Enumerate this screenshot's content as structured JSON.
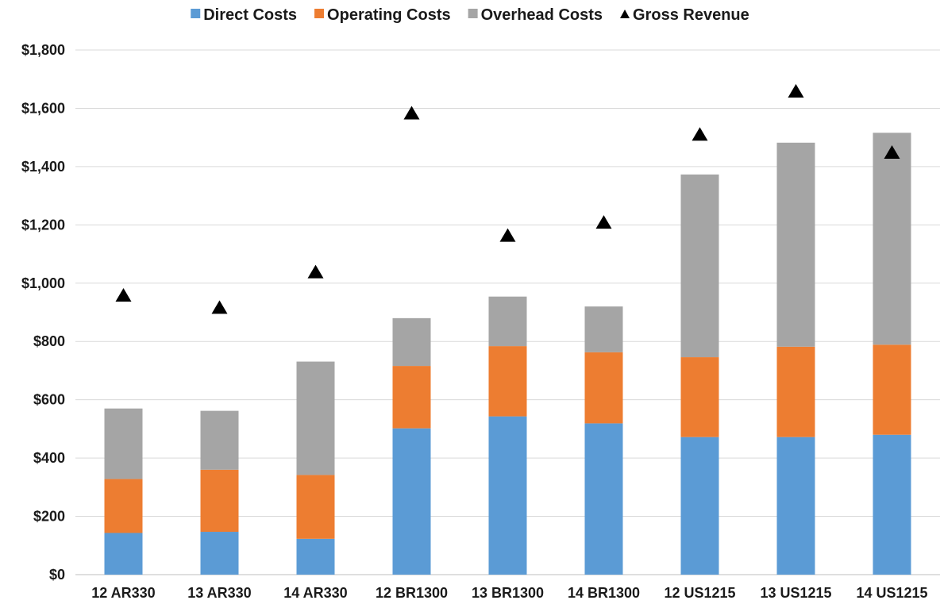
{
  "chart_data": {
    "type": "bar",
    "stacked": true,
    "title": "",
    "xlabel": "",
    "ylabel": "",
    "categories": [
      "12 AR330",
      "13 AR330",
      "14 AR330",
      "12 BR1300",
      "13 BR1300",
      "14 BR1300",
      "12 US1215",
      "13 US1215",
      "14 US1215"
    ],
    "series": [
      {
        "name": "Direct Costs",
        "kind": "bar",
        "color": "#5b9bd5",
        "values": [
          143,
          147,
          123,
          502,
          543,
          519,
          472,
          472,
          480
        ]
      },
      {
        "name": "Operating Costs",
        "kind": "bar",
        "color": "#ed7d31",
        "values": [
          185,
          213,
          219,
          214,
          241,
          244,
          274,
          310,
          309
        ]
      },
      {
        "name": "Overhead Costs",
        "kind": "bar",
        "color": "#a5a5a5",
        "values": [
          242,
          202,
          389,
          164,
          170,
          157,
          627,
          700,
          727
        ]
      },
      {
        "name": "Gross Revenue",
        "kind": "marker",
        "marker": "triangle",
        "color": "#000000",
        "values": [
          960,
          918,
          1040,
          1585,
          1165,
          1210,
          1512,
          1660,
          1450
        ]
      }
    ],
    "ylim": [
      0,
      1800
    ],
    "yticks": [
      0,
      200,
      400,
      600,
      800,
      1000,
      1200,
      1400,
      1600,
      1800
    ],
    "ytick_labels": [
      "$0",
      "$200",
      "$400",
      "$600",
      "$800",
      "$1,000",
      "$1,200",
      "$1,400",
      "$1,600",
      "$1,800"
    ],
    "grid": true,
    "legend_position": "top"
  }
}
